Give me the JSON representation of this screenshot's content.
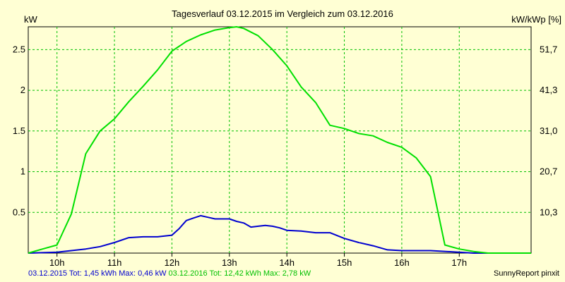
{
  "chart_data": {
    "type": "line",
    "title": "Tagesverlauf 03.12.2015 im Vergleich zum 03.12.2016",
    "ylabel_left": "kW",
    "ylabel_right": "kW/kWp [%]",
    "xlim": [
      9.5,
      18.25
    ],
    "ylim": [
      0,
      2.78
    ],
    "x_ticks": [
      10,
      11,
      12,
      13,
      14,
      15,
      16,
      17
    ],
    "x_tick_labels": [
      "10h",
      "11h",
      "12h",
      "13h",
      "14h",
      "15h",
      "16h",
      "17h"
    ],
    "y_ticks": [
      0.5,
      1,
      1.5,
      2,
      2.5
    ],
    "y_tick_labels": [
      "0.5",
      "1",
      "1.5",
      "2",
      "2.5"
    ],
    "y2_ticks": [
      0.5,
      1,
      1.5,
      2,
      2.5
    ],
    "y2_tick_labels": [
      "10,3",
      "20,7",
      "31,0",
      "41,3",
      "51,7"
    ],
    "grid": true,
    "colors": {
      "background": "#ffffd4",
      "grid": "#00c000",
      "series_2015": "#0000d0",
      "series_2016": "#00e000"
    },
    "series": [
      {
        "name": "03.12.2015",
        "x": [
          9.5,
          10.0,
          10.25,
          10.5,
          10.75,
          11.0,
          11.25,
          11.5,
          11.75,
          12.0,
          12.125,
          12.25,
          12.375,
          12.5,
          12.625,
          12.75,
          12.875,
          13.0,
          13.125,
          13.25,
          13.375,
          13.5,
          13.625,
          13.75,
          13.875,
          14.0,
          14.25,
          14.5,
          14.75,
          15.0,
          15.25,
          15.5,
          15.75,
          16.0,
          16.5,
          17.0,
          17.25,
          17.5
        ],
        "values": [
          0.0,
          0.01,
          0.03,
          0.05,
          0.08,
          0.13,
          0.19,
          0.2,
          0.2,
          0.22,
          0.3,
          0.4,
          0.43,
          0.46,
          0.44,
          0.42,
          0.42,
          0.42,
          0.39,
          0.37,
          0.32,
          0.33,
          0.34,
          0.33,
          0.31,
          0.28,
          0.27,
          0.25,
          0.25,
          0.18,
          0.13,
          0.09,
          0.04,
          0.03,
          0.03,
          0.01,
          0.0,
          0.0
        ]
      },
      {
        "name": "03.12.2016",
        "x": [
          9.5,
          9.75,
          10.0,
          10.25,
          10.5,
          10.75,
          11.0,
          11.25,
          11.5,
          11.75,
          12.0,
          12.25,
          12.5,
          12.75,
          13.0,
          13.125,
          13.25,
          13.5,
          13.75,
          14.0,
          14.25,
          14.5,
          14.75,
          15.0,
          15.25,
          15.5,
          15.75,
          16.0,
          16.25,
          16.5,
          16.75,
          17.0,
          17.25,
          17.5,
          17.75,
          18.0,
          18.25
        ],
        "values": [
          0.0,
          0.05,
          0.1,
          0.48,
          1.22,
          1.5,
          1.65,
          1.86,
          2.05,
          2.25,
          2.48,
          2.6,
          2.68,
          2.74,
          2.77,
          2.78,
          2.76,
          2.67,
          2.5,
          2.3,
          2.04,
          1.85,
          1.57,
          1.53,
          1.47,
          1.44,
          1.36,
          1.3,
          1.17,
          0.94,
          0.1,
          0.05,
          0.02,
          0.0,
          0.0,
          0.0,
          0.0
        ]
      }
    ]
  },
  "footer": {
    "series_2015_summary": "03.12.2015 Tot: 1,45 kWh Max: 0,46 kW",
    "series_2016_summary": "03.12.2016 Tot: 12,42 kWh Max: 2,78 kW",
    "credit": "SunnyReport pinxit"
  }
}
